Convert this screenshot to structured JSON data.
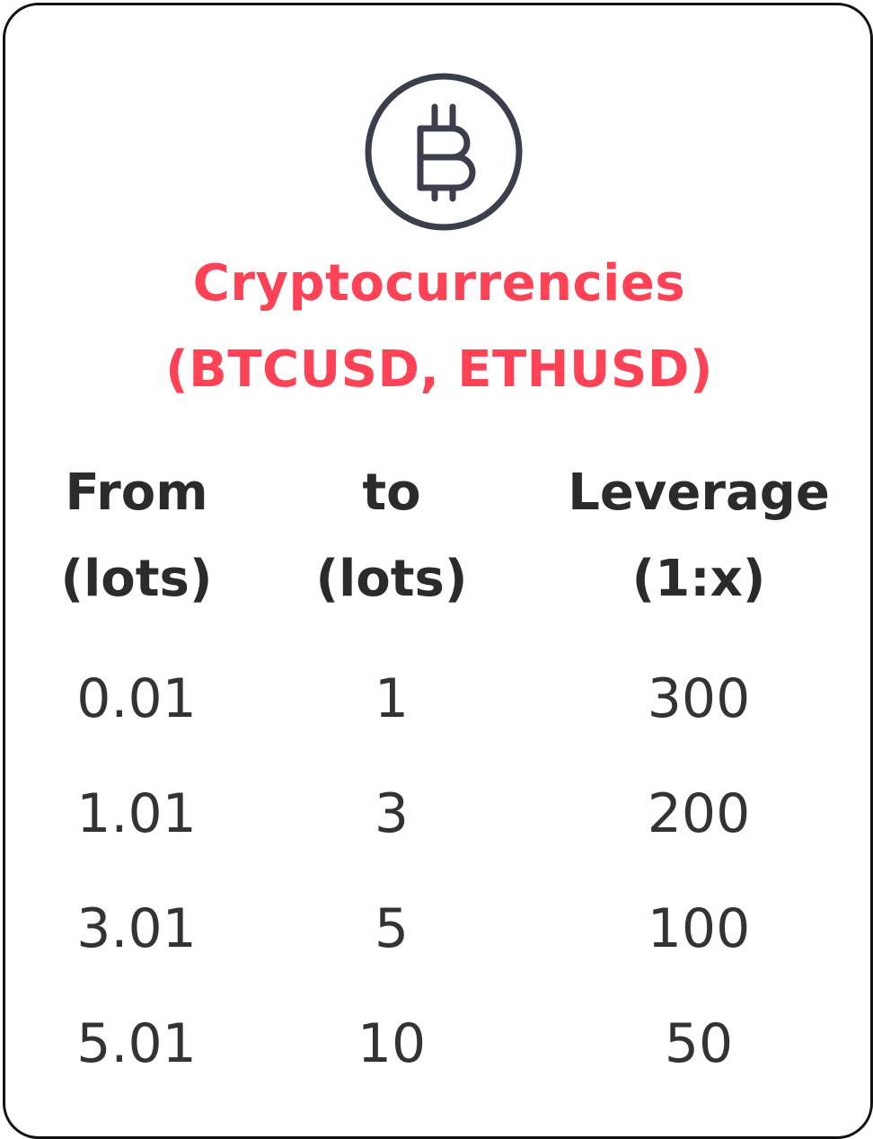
{
  "header": {
    "icon": "bitcoin-icon",
    "title_line1": "Cryptocurrencies",
    "title_line2": "(BTCUSD, ETHUSD)"
  },
  "colors": {
    "accent": "#ff4255",
    "text": "#2b2b2b",
    "icon": "#3a3f4b",
    "border": "#111111"
  },
  "table": {
    "columns": [
      {
        "line1": "From",
        "line2": "(lots)"
      },
      {
        "line1": "to",
        "line2": "(lots)"
      },
      {
        "line1": "Leverage",
        "line2": "(1:x)"
      }
    ],
    "rows": [
      {
        "from": "0.01",
        "to": "1",
        "leverage": "300"
      },
      {
        "from": "1.01",
        "to": "3",
        "leverage": "200"
      },
      {
        "from": "3.01",
        "to": "5",
        "leverage": "100"
      },
      {
        "from": "5.01",
        "to": "10",
        "leverage": "50"
      }
    ]
  }
}
